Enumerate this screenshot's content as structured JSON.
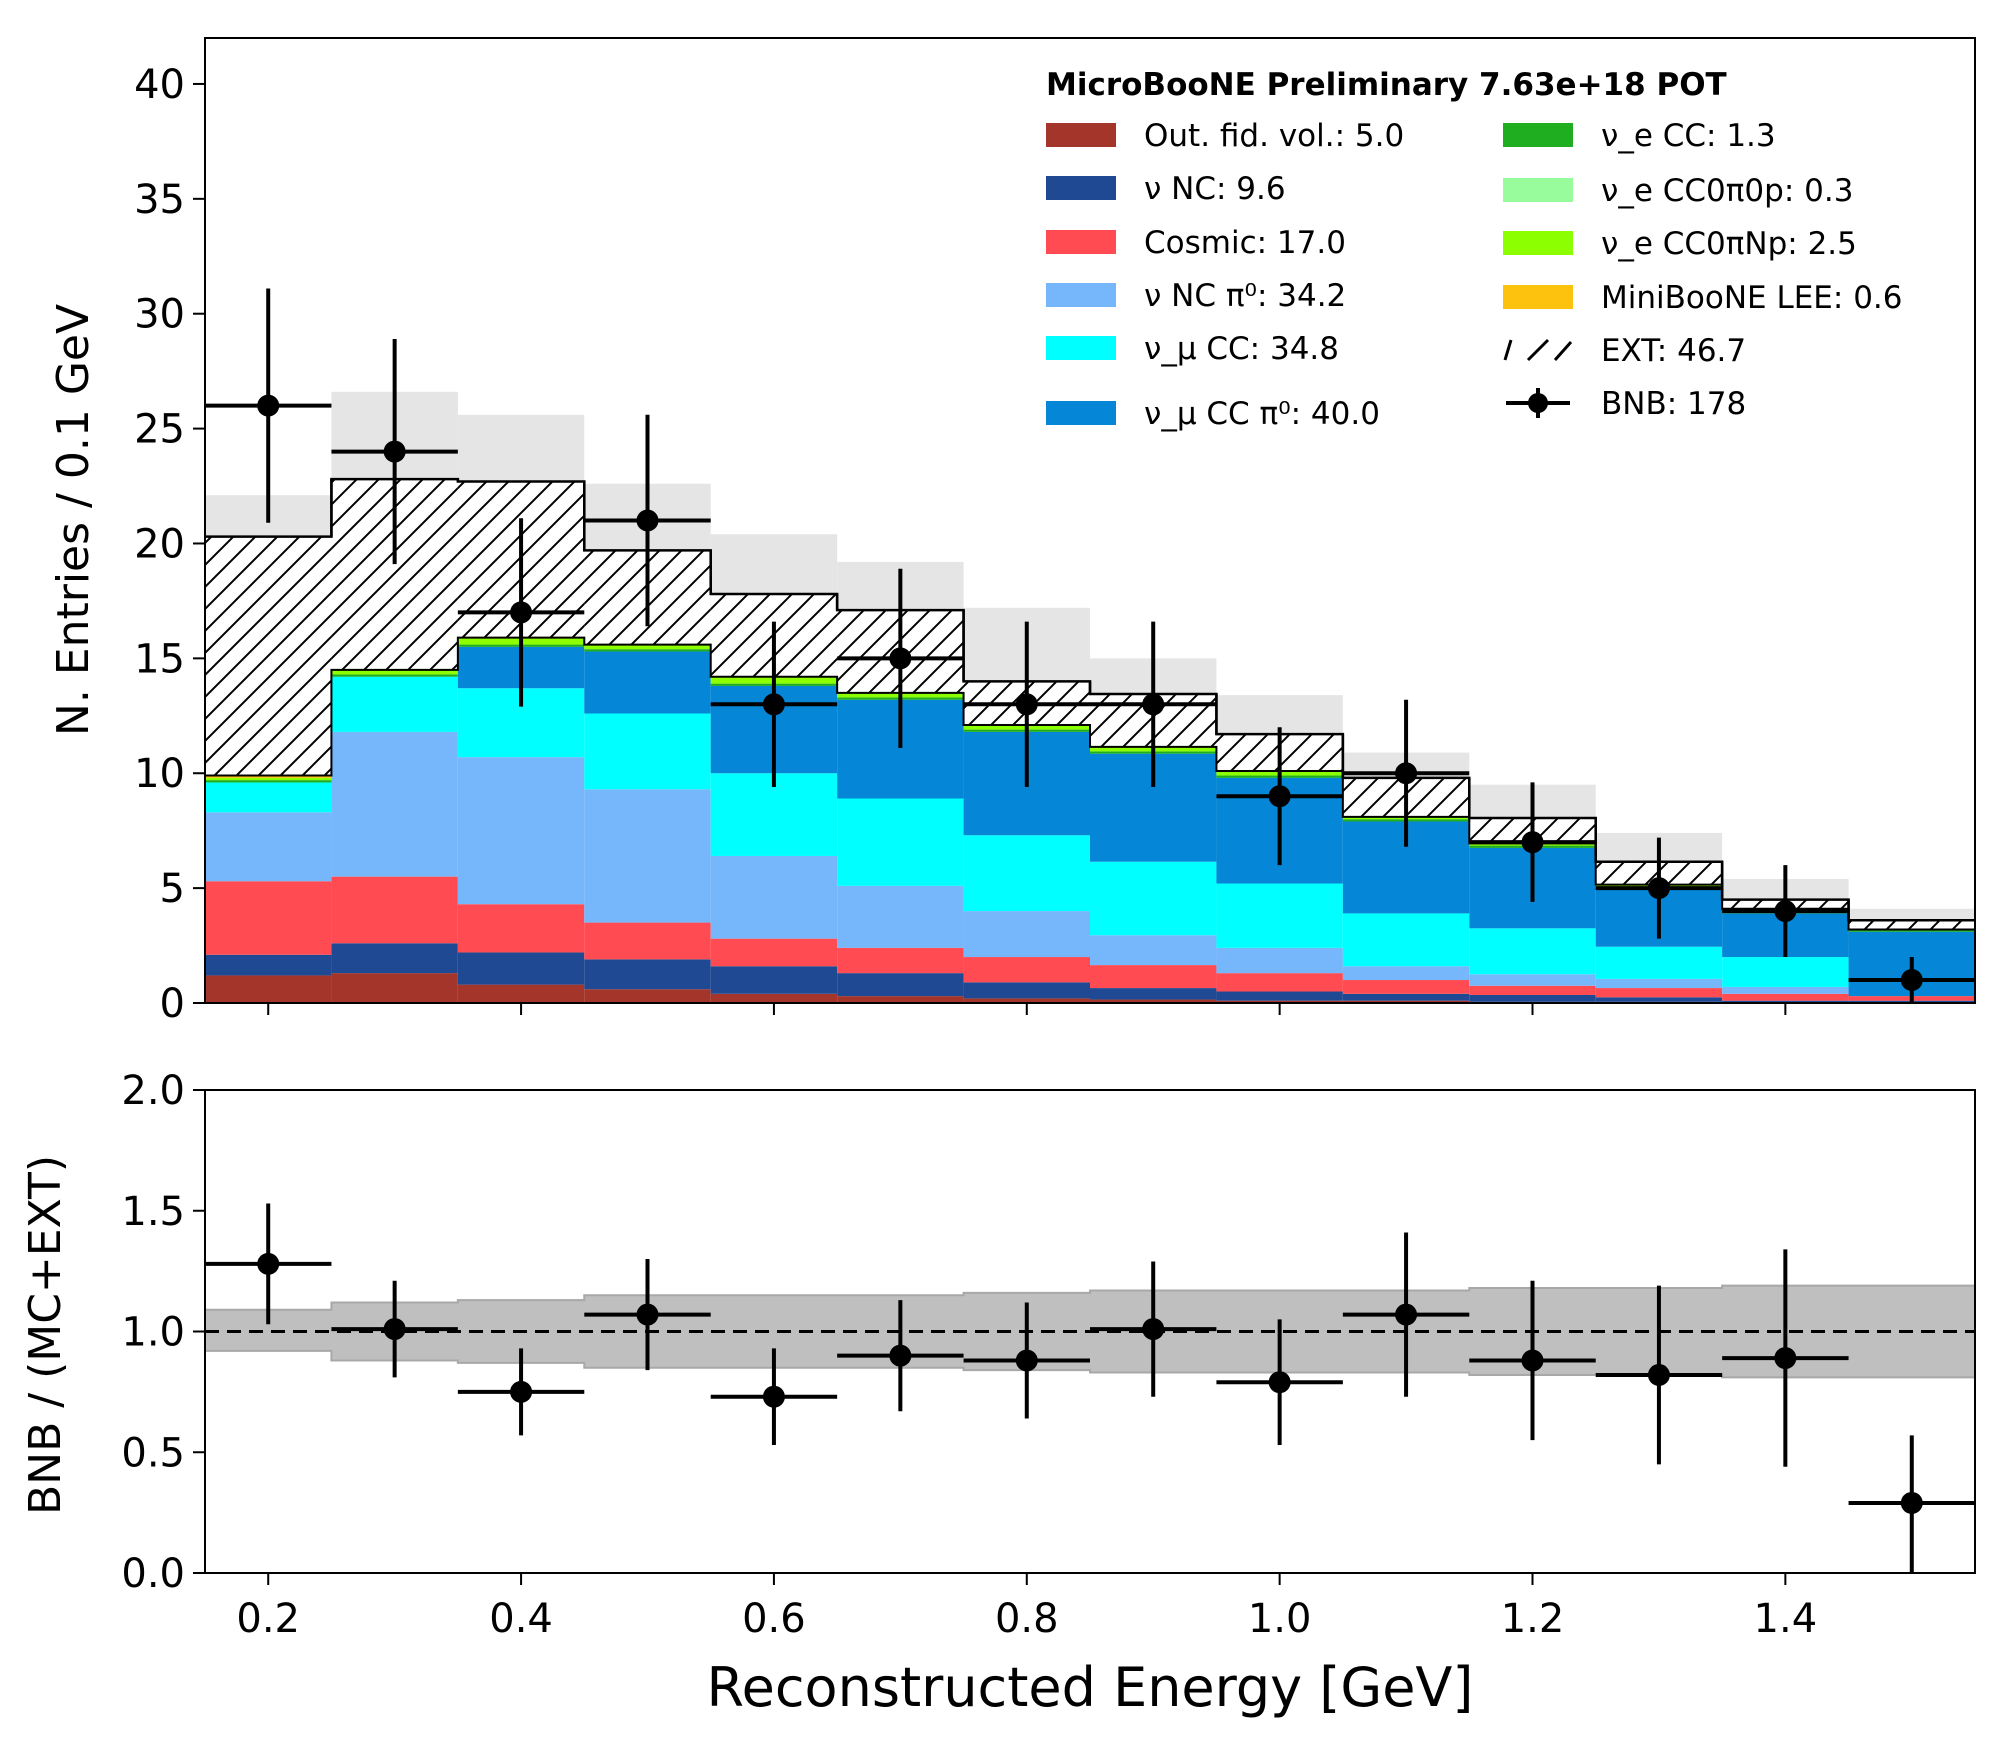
{
  "chart_data": [
    {
      "type": "bar",
      "title": "",
      "legend_title": "MicroBooNE Preliminary 7.63e+18 POT",
      "ylabel": "N. Entries / 0.1 GeV",
      "xlim": [
        0.15,
        1.55
      ],
      "ylim": [
        0,
        42
      ],
      "yticks": [
        "0",
        "5",
        "10",
        "15",
        "20",
        "25",
        "30",
        "35",
        "40"
      ],
      "legend_position": "top-right",
      "bin_edges": [
        0.15,
        0.25,
        0.35,
        0.45,
        0.55,
        0.65,
        0.75,
        0.85,
        0.95,
        1.05,
        1.15,
        1.25,
        1.35,
        1.45,
        1.55
      ],
      "stack": [
        {
          "name": "Out. fid. vol.: 5.0",
          "color": "#a3352a",
          "values": [
            1.2,
            1.3,
            0.8,
            0.6,
            0.4,
            0.3,
            0.2,
            0.15,
            0.1,
            0.1,
            0.05,
            0.05,
            0.0,
            0.0
          ]
        },
        {
          "name": "ν NC: 9.6",
          "color": "#1f4a93",
          "values": [
            0.9,
            1.3,
            1.4,
            1.3,
            1.2,
            1.0,
            0.7,
            0.5,
            0.4,
            0.3,
            0.3,
            0.2,
            0.1,
            0.1
          ]
        },
        {
          "name": "Cosmic: 17.0",
          "color": "#ff4b51",
          "values": [
            3.2,
            2.9,
            2.1,
            1.6,
            1.2,
            1.1,
            1.1,
            1.0,
            0.8,
            0.6,
            0.4,
            0.4,
            0.3,
            0.2
          ]
        },
        {
          "name": "ν NC π⁰: 34.2",
          "color": "#76b6fb",
          "values": [
            3.0,
            6.3,
            6.4,
            5.8,
            3.6,
            2.7,
            2.0,
            1.3,
            1.1,
            0.6,
            0.5,
            0.4,
            0.3,
            0.0
          ]
        },
        {
          "name": "ν_μ CC: 34.8",
          "color": "#00ffff",
          "values": [
            1.3,
            2.4,
            3.0,
            3.3,
            3.6,
            3.8,
            3.3,
            3.2,
            2.8,
            2.3,
            2.0,
            1.4,
            1.3,
            0.0
          ]
        },
        {
          "name": "ν_μ CC π⁰: 40.0",
          "color": "#0586d6",
          "values": [
            0.0,
            0.0,
            1.8,
            2.7,
            3.8,
            4.3,
            4.5,
            4.7,
            4.6,
            4.0,
            3.5,
            2.5,
            1.9,
            2.8
          ]
        },
        {
          "name": "ν_e CC: 1.3",
          "color": "#1fae1f",
          "values": [
            0.1,
            0.1,
            0.1,
            0.1,
            0.1,
            0.1,
            0.1,
            0.1,
            0.1,
            0.1,
            0.1,
            0.1,
            0.1,
            0.1
          ]
        },
        {
          "name": "ν_e CC0π0p: 0.3",
          "color": "#98fc9c",
          "values": [
            0.0,
            0.0,
            0.0,
            0.0,
            0.0,
            0.0,
            0.0,
            0.0,
            0.0,
            0.0,
            0.0,
            0.0,
            0.0,
            0.0
          ]
        },
        {
          "name": "ν_e CC0πNp: 2.5",
          "color": "#8cff00",
          "values": [
            0.1,
            0.2,
            0.3,
            0.2,
            0.3,
            0.2,
            0.2,
            0.2,
            0.2,
            0.1,
            0.1,
            0.1,
            0.1,
            0.0
          ]
        },
        {
          "name": "MiniBooNE LEE: 0.6",
          "color": "#fcc20d",
          "values": [
            0.1,
            0.0,
            0.0,
            0.0,
            0.0,
            0.0,
            0.0,
            0.0,
            0.0,
            0.0,
            0.0,
            0.0,
            0.0,
            0.0
          ]
        },
        {
          "name": "EXT: 46.7",
          "color": "#ffffff",
          "hatch": true,
          "values": [
            10.4,
            8.3,
            6.8,
            4.1,
            3.6,
            3.6,
            1.9,
            2.3,
            1.6,
            1.7,
            1.1,
            1.0,
            0.4,
            0.4
          ]
        }
      ],
      "uncertainty_band": {
        "low": [
          18.6,
          20.8,
          19.6,
          16.7,
          15.3,
          14.4,
          12.5,
          11.0,
          9.5,
          8.2,
          6.5,
          4.6,
          3.3,
          2.6
        ],
        "high": [
          22.1,
          26.6,
          25.6,
          22.6,
          20.4,
          19.2,
          17.2,
          15.0,
          13.4,
          10.9,
          9.5,
          7.4,
          5.4,
          4.1
        ],
        "color": "#e5e5e5"
      },
      "data": {
        "name": "BNB: 178",
        "x": [
          0.2,
          0.3,
          0.4,
          0.5,
          0.6,
          0.7,
          0.8,
          0.9,
          1.0,
          1.1,
          1.2,
          1.3,
          1.4,
          1.5
        ],
        "values": [
          26,
          24,
          17,
          21,
          13,
          15,
          13,
          13,
          9,
          10,
          7,
          5,
          4,
          1
        ],
        "err_low": [
          5.1,
          4.9,
          4.1,
          4.6,
          3.6,
          3.9,
          3.6,
          3.6,
          3.0,
          3.2,
          2.6,
          2.2,
          2.0,
          1.0
        ],
        "err_high": [
          5.1,
          4.9,
          4.1,
          4.6,
          3.6,
          3.9,
          3.6,
          3.6,
          3.0,
          3.2,
          2.6,
          2.2,
          2.0,
          1.0
        ],
        "color": "#000000"
      }
    },
    {
      "type": "scatter",
      "title": "",
      "xlabel": "Reconstructed Energy [GeV]",
      "ylabel": "BNB / (MC+EXT)",
      "xlim": [
        0.15,
        1.55
      ],
      "ylim": [
        0.0,
        2.0
      ],
      "xticks": [
        "0.2",
        "0.4",
        "0.6",
        "0.8",
        "1.0",
        "1.2",
        "1.4"
      ],
      "yticks": [
        "0.0",
        "0.5",
        "1.0",
        "1.5",
        "2.0"
      ],
      "reference_line": 1.0,
      "band": {
        "low": [
          0.92,
          0.88,
          0.87,
          0.85,
          0.85,
          0.85,
          0.84,
          0.83,
          0.83,
          0.83,
          0.82,
          0.82,
          0.81,
          0.81
        ],
        "high": [
          1.09,
          1.12,
          1.13,
          1.15,
          1.15,
          1.15,
          1.16,
          1.17,
          1.17,
          1.17,
          1.18,
          1.18,
          1.19,
          1.19
        ],
        "color": "#bfbfbf"
      },
      "x": [
        0.2,
        0.3,
        0.4,
        0.5,
        0.6,
        0.7,
        0.8,
        0.9,
        1.0,
        1.1,
        1.2,
        1.3,
        1.4,
        1.5
      ],
      "values": [
        1.28,
        1.01,
        0.75,
        1.07,
        0.73,
        0.9,
        0.88,
        1.01,
        0.79,
        1.07,
        0.88,
        0.82,
        0.89,
        0.29
      ],
      "err_low": [
        0.25,
        0.2,
        0.18,
        0.23,
        0.2,
        0.23,
        0.24,
        0.28,
        0.26,
        0.34,
        0.33,
        0.37,
        0.45,
        0.29
      ],
      "err_high": [
        0.25,
        0.2,
        0.18,
        0.23,
        0.2,
        0.23,
        0.24,
        0.28,
        0.26,
        0.34,
        0.33,
        0.37,
        0.45,
        0.28
      ]
    }
  ]
}
